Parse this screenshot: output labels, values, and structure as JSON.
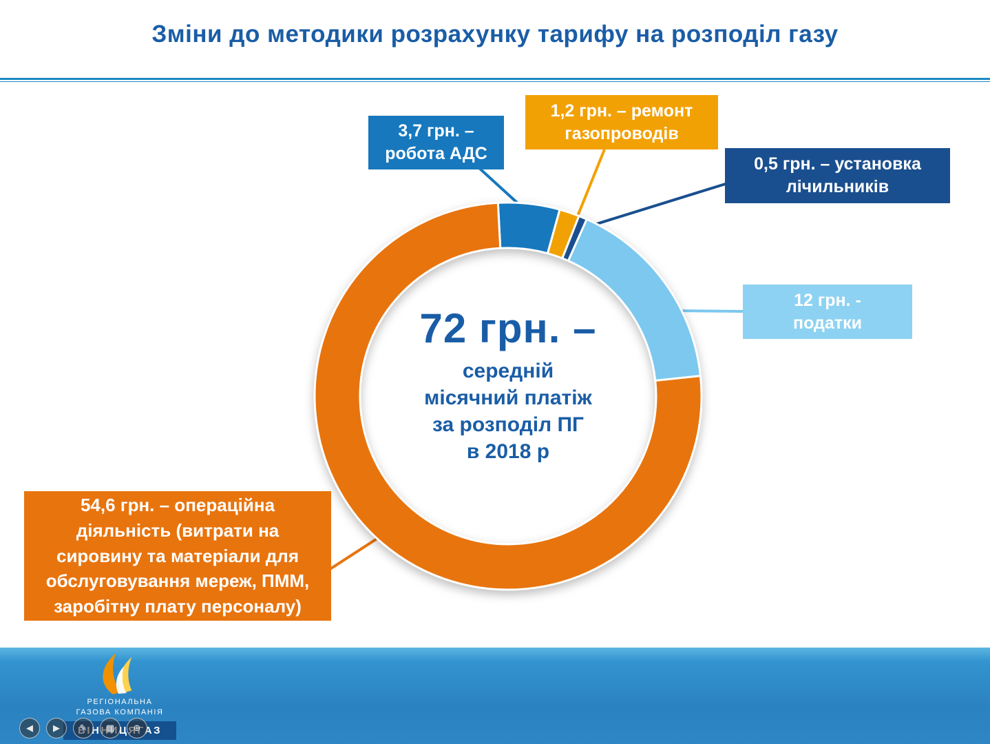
{
  "slide": {
    "title": "Зміни до методики розрахунку тарифу на розподіл газу"
  },
  "chart_data": {
    "type": "pie",
    "variant": "donut",
    "title": "72 грн. – середній місячний платіж за розподіл ПГ в 2018 р",
    "units": "грн.",
    "total": 72,
    "start_angle_deg": -3,
    "legend_position": "callouts",
    "center_text": {
      "value": "72 грн. –",
      "lines": [
        "середній",
        "місячний платіж",
        "за розподіл ПГ",
        "в 2018 р"
      ]
    },
    "segments": [
      {
        "id": "ads",
        "label": "робота АДС",
        "value": 3.7,
        "color": "#1778be"
      },
      {
        "id": "repair",
        "label": "ремонт газопроводів",
        "value": 1.2,
        "color": "#f2a105"
      },
      {
        "id": "meters",
        "label": "установка лічильників",
        "value": 0.5,
        "color": "#1a4f8f"
      },
      {
        "id": "taxes",
        "label": "податки",
        "value": 12,
        "color": "#7cc8ef"
      },
      {
        "id": "operations",
        "label": "операційна діяльність",
        "value": 54.6,
        "color": "#e8740e"
      }
    ]
  },
  "callouts": {
    "ads": {
      "text": "3,7 грн. –\nробота АДС",
      "color": "#1778be"
    },
    "repair": {
      "text": "1,2 грн. – ремонт\nгазопроводів",
      "color": "#f2a105"
    },
    "meters": {
      "text": "0,5 грн. – установка\nлічильників",
      "color": "#1a4f8f"
    },
    "taxes": {
      "text": "12 грн. -\nподатки",
      "color": "#8dd2f2"
    },
    "operations": {
      "text": "54,6 грн. – операційна\nдіяльність (витрати на\nсировину та матеріали для\nобслуговування мереж, ПММ,\nзаробітну плату персоналу)",
      "color": "#e8740e"
    }
  },
  "footer": {
    "company_line1": "РЕГІОНАЛЬНА",
    "company_line2": "ГАЗОВА КОМПАНІЯ",
    "brand": "ВІННИЦЯГАЗ"
  },
  "nav": {
    "buttons": [
      {
        "id": "prev-slide",
        "glyph": "◀"
      },
      {
        "id": "next-slide",
        "glyph": "▶"
      },
      {
        "id": "pen-tool",
        "glyph": "✎"
      },
      {
        "id": "all-slides",
        "glyph": "▦"
      },
      {
        "id": "zoom",
        "glyph": "⊕"
      }
    ]
  },
  "colors": {
    "title": "#1a5da6",
    "divider": "#1d8ac2",
    "footer_top": "#5cb6e2",
    "footer_bottom": "#2b82c0",
    "brand_strip": "#14518e"
  }
}
